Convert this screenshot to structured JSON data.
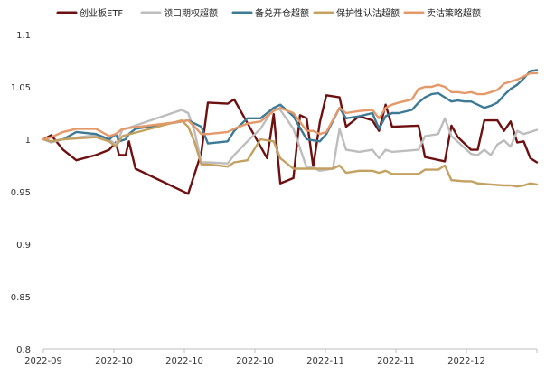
{
  "chart_data": {
    "type": "line",
    "title": "",
    "xlabel": "",
    "ylabel": "",
    "ylim": [
      0.8,
      1.1
    ],
    "yticks": [
      "0.8",
      "0.85",
      "0.9",
      "0.95",
      "1",
      "1.05",
      "1.1"
    ],
    "x_ticks": [
      "2022-09",
      "2022-10",
      "2022-10",
      "2022-10",
      "2022-11",
      "2022-11",
      "2022-12"
    ],
    "grid": false,
    "legend_position": "top",
    "series": [
      {
        "name": "创业板ETF",
        "color": "#6e0f10",
        "points": [
          [
            0,
            1.0
          ],
          [
            1.2,
            1.004
          ],
          [
            3,
            0.99
          ],
          [
            5,
            0.98
          ],
          [
            8,
            0.985
          ],
          [
            10,
            0.99
          ],
          [
            11,
            0.997
          ],
          [
            11.5,
            0.985
          ],
          [
            12.5,
            0.985
          ],
          [
            13,
            0.998
          ],
          [
            14,
            0.972
          ],
          [
            22,
            0.948
          ],
          [
            24,
            0.987
          ],
          [
            25,
            1.035
          ],
          [
            28,
            1.034
          ],
          [
            29,
            1.038
          ],
          [
            34,
            0.982
          ],
          [
            35,
            1.024
          ],
          [
            36,
            0.958
          ],
          [
            38,
            0.963
          ],
          [
            39,
            1.023
          ],
          [
            40,
            1.02
          ],
          [
            41,
            0.974
          ],
          [
            42,
            1.016
          ],
          [
            43,
            1.042
          ],
          [
            45,
            1.04
          ],
          [
            46,
            1.012
          ],
          [
            48,
            1.022
          ],
          [
            50,
            1.018
          ],
          [
            51,
            1.008
          ],
          [
            52,
            1.033
          ],
          [
            53,
            1.012
          ],
          [
            57,
            1.013
          ],
          [
            58,
            0.983
          ],
          [
            61,
            0.979
          ],
          [
            62,
            1.013
          ],
          [
            63,
            1.002
          ],
          [
            65,
            0.99
          ],
          [
            66,
            0.99
          ],
          [
            67,
            1.018
          ],
          [
            69,
            1.018
          ],
          [
            70,
            1.008
          ],
          [
            71,
            1.017
          ],
          [
            72,
            0.997
          ],
          [
            73,
            0.998
          ],
          [
            74,
            0.982
          ],
          [
            75,
            0.978
          ]
        ]
      },
      {
        "name": "领口期权超额",
        "color": "#bdbdbd",
        "points": [
          [
            0,
            1.0
          ],
          [
            1.2,
            0.997
          ],
          [
            3,
            1.0
          ],
          [
            8,
            1.004
          ],
          [
            10,
            1.0
          ],
          [
            11,
            0.995
          ],
          [
            12,
            1.009
          ],
          [
            21,
            1.028
          ],
          [
            22,
            1.025
          ],
          [
            23,
            1.007
          ],
          [
            24,
            0.978
          ],
          [
            25,
            0.978
          ],
          [
            28,
            0.977
          ],
          [
            29,
            0.985
          ],
          [
            31,
            0.998
          ],
          [
            33,
            1.01
          ],
          [
            35,
            1.03
          ],
          [
            36,
            1.028
          ],
          [
            38,
            1.01
          ],
          [
            40,
            0.973
          ],
          [
            41,
            0.973
          ],
          [
            42,
            0.97
          ],
          [
            44,
            0.972
          ],
          [
            45,
            1.01
          ],
          [
            46,
            0.99
          ],
          [
            48,
            0.988
          ],
          [
            50,
            0.99
          ],
          [
            51,
            0.982
          ],
          [
            52,
            0.99
          ],
          [
            53,
            0.988
          ],
          [
            57,
            0.99
          ],
          [
            58,
            1.003
          ],
          [
            60,
            1.005
          ],
          [
            61,
            1.02
          ],
          [
            62,
            1.003
          ],
          [
            65,
            0.986
          ],
          [
            66,
            0.985
          ],
          [
            67,
            0.99
          ],
          [
            68,
            0.985
          ],
          [
            69,
            0.995
          ],
          [
            70,
            0.999
          ],
          [
            71,
            0.993
          ],
          [
            72,
            1.008
          ],
          [
            73,
            1.005
          ],
          [
            75,
            1.009
          ]
        ]
      },
      {
        "name": "备兑开仓超额",
        "color": "#3d7a96",
        "points": [
          [
            0,
            1.0
          ],
          [
            1.2,
            0.998
          ],
          [
            3,
            1.0
          ],
          [
            5,
            1.007
          ],
          [
            8,
            1.005
          ],
          [
            10,
            1.0
          ],
          [
            11,
            1.005
          ],
          [
            11.5,
            0.998
          ],
          [
            12.5,
            1.0
          ],
          [
            13,
            1.005
          ],
          [
            14,
            1.01
          ],
          [
            21,
            1.017
          ],
          [
            22,
            1.018
          ],
          [
            23,
            1.015
          ],
          [
            24,
            1.012
          ],
          [
            25,
            0.996
          ],
          [
            28,
            0.998
          ],
          [
            29,
            1.008
          ],
          [
            31,
            1.02
          ],
          [
            33,
            1.02
          ],
          [
            35,
            1.03
          ],
          [
            36,
            1.033
          ],
          [
            38,
            1.022
          ],
          [
            40,
            1.0
          ],
          [
            41,
            0.999
          ],
          [
            42,
            0.998
          ],
          [
            43,
            1.005
          ],
          [
            45,
            1.03
          ],
          [
            46,
            1.02
          ],
          [
            48,
            1.022
          ],
          [
            50,
            1.025
          ],
          [
            51,
            1.01
          ],
          [
            52,
            1.022
          ],
          [
            53,
            1.025
          ],
          [
            54,
            1.025
          ],
          [
            56,
            1.028
          ],
          [
            57,
            1.035
          ],
          [
            58,
            1.04
          ],
          [
            59,
            1.043
          ],
          [
            60,
            1.044
          ],
          [
            61,
            1.04
          ],
          [
            62,
            1.036
          ],
          [
            63,
            1.037
          ],
          [
            64,
            1.036
          ],
          [
            65,
            1.036
          ],
          [
            66,
            1.033
          ],
          [
            67,
            1.03
          ],
          [
            68,
            1.032
          ],
          [
            69,
            1.035
          ],
          [
            70,
            1.042
          ],
          [
            71,
            1.048
          ],
          [
            72,
            1.052
          ],
          [
            73,
            1.058
          ],
          [
            74,
            1.065
          ],
          [
            75,
            1.066
          ]
        ]
      },
      {
        "name": "保护性认沽超额",
        "color": "#c4a160",
        "points": [
          [
            0,
            1.0
          ],
          [
            1.2,
            0.998
          ],
          [
            3,
            1.0
          ],
          [
            8,
            1.002
          ],
          [
            10,
            0.998
          ],
          [
            11,
            0.993
          ],
          [
            12,
            1.003
          ],
          [
            21,
            1.018
          ],
          [
            22,
            1.012
          ],
          [
            23,
            0.997
          ],
          [
            24,
            0.976
          ],
          [
            25,
            0.976
          ],
          [
            28,
            0.974
          ],
          [
            29,
            0.978
          ],
          [
            31,
            0.98
          ],
          [
            33,
            1.0
          ],
          [
            35,
            0.998
          ],
          [
            36,
            0.982
          ],
          [
            38,
            0.972
          ],
          [
            40,
            0.972
          ],
          [
            41,
            0.972
          ],
          [
            42,
            0.972
          ],
          [
            44,
            0.972
          ],
          [
            45,
            0.975
          ],
          [
            46,
            0.968
          ],
          [
            48,
            0.97
          ],
          [
            50,
            0.97
          ],
          [
            51,
            0.968
          ],
          [
            52,
            0.97
          ],
          [
            53,
            0.967
          ],
          [
            57,
            0.967
          ],
          [
            58,
            0.971
          ],
          [
            60,
            0.971
          ],
          [
            61,
            0.975
          ],
          [
            62,
            0.961
          ],
          [
            64,
            0.96
          ],
          [
            65,
            0.96
          ],
          [
            66,
            0.958
          ],
          [
            68,
            0.957
          ],
          [
            70,
            0.956
          ],
          [
            71,
            0.956
          ],
          [
            72,
            0.955
          ],
          [
            73,
            0.956
          ],
          [
            74,
            0.958
          ],
          [
            75,
            0.957
          ]
        ]
      },
      {
        "name": "卖沽策略超额",
        "color": "#e59868",
        "points": [
          [
            0,
            1.0
          ],
          [
            1.2,
            1.002
          ],
          [
            3,
            1.007
          ],
          [
            5,
            1.01
          ],
          [
            8,
            1.01
          ],
          [
            10,
            1.003
          ],
          [
            11,
            1.005
          ],
          [
            12,
            1.01
          ],
          [
            21,
            1.017
          ],
          [
            22,
            1.018
          ],
          [
            23,
            1.012
          ],
          [
            24,
            1.005
          ],
          [
            25,
            1.005
          ],
          [
            28,
            1.007
          ],
          [
            29,
            1.01
          ],
          [
            31,
            1.015
          ],
          [
            33,
            1.017
          ],
          [
            35,
            1.027
          ],
          [
            36,
            1.03
          ],
          [
            38,
            1.025
          ],
          [
            40,
            1.008
          ],
          [
            41,
            1.008
          ],
          [
            42,
            1.005
          ],
          [
            43,
            1.007
          ],
          [
            45,
            1.03
          ],
          [
            46,
            1.025
          ],
          [
            48,
            1.027
          ],
          [
            50,
            1.028
          ],
          [
            51,
            1.02
          ],
          [
            52,
            1.03
          ],
          [
            53,
            1.033
          ],
          [
            54,
            1.035
          ],
          [
            56,
            1.038
          ],
          [
            57,
            1.048
          ],
          [
            58,
            1.05
          ],
          [
            59,
            1.05
          ],
          [
            60,
            1.052
          ],
          [
            61,
            1.05
          ],
          [
            62,
            1.045
          ],
          [
            63,
            1.045
          ],
          [
            64,
            1.044
          ],
          [
            65,
            1.045
          ],
          [
            66,
            1.043
          ],
          [
            67,
            1.043
          ],
          [
            68,
            1.045
          ],
          [
            69,
            1.047
          ],
          [
            70,
            1.053
          ],
          [
            71,
            1.055
          ],
          [
            72,
            1.057
          ],
          [
            73,
            1.06
          ],
          [
            74,
            1.063
          ],
          [
            75,
            1.063
          ]
        ]
      }
    ]
  }
}
